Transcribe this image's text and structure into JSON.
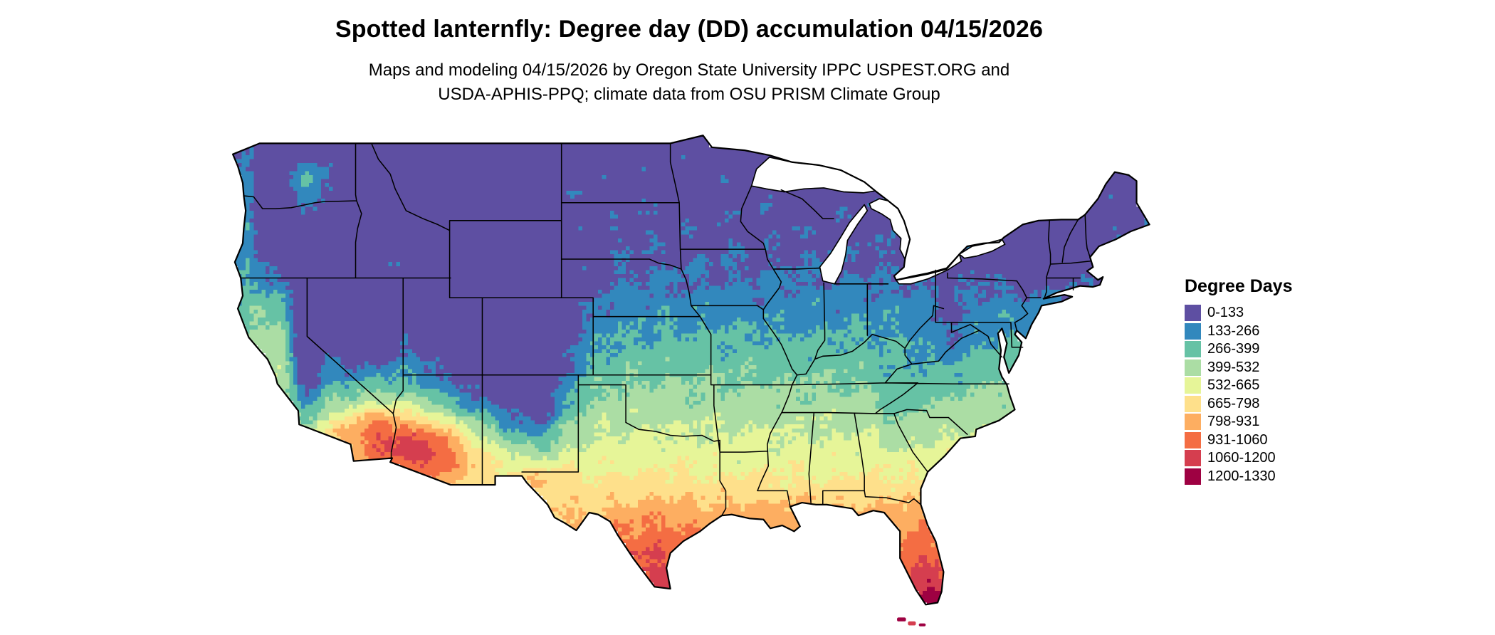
{
  "title": "Spotted lanternfly: Degree day (DD) accumulation 04/15/2026",
  "subtitle": {
    "line1": "Maps and modeling 04/15/2026 by Oregon State University IPPC USPEST.ORG and",
    "line2": "USDA-APHIS-PPQ; climate data from OSU PRISM Climate Group"
  },
  "legend": {
    "title": "Degree Days",
    "breaks": [
      0,
      133,
      266,
      399,
      532,
      665,
      798,
      931,
      1060,
      1200,
      1330
    ],
    "entries": [
      {
        "label": "0-133",
        "color": "#5e4fa2"
      },
      {
        "label": "133-266",
        "color": "#3288bd"
      },
      {
        "label": "266-399",
        "color": "#66c2a5"
      },
      {
        "label": "399-532",
        "color": "#abdda4"
      },
      {
        "label": "532-665",
        "color": "#e6f598"
      },
      {
        "label": "665-798",
        "color": "#fee08b"
      },
      {
        "label": "798-931",
        "color": "#fdae61"
      },
      {
        "label": "931-1060",
        "color": "#f46d43"
      },
      {
        "label": "1060-1200",
        "color": "#d53e4f"
      },
      {
        "label": "1200-1330",
        "color": "#9e0142"
      }
    ]
  }
}
